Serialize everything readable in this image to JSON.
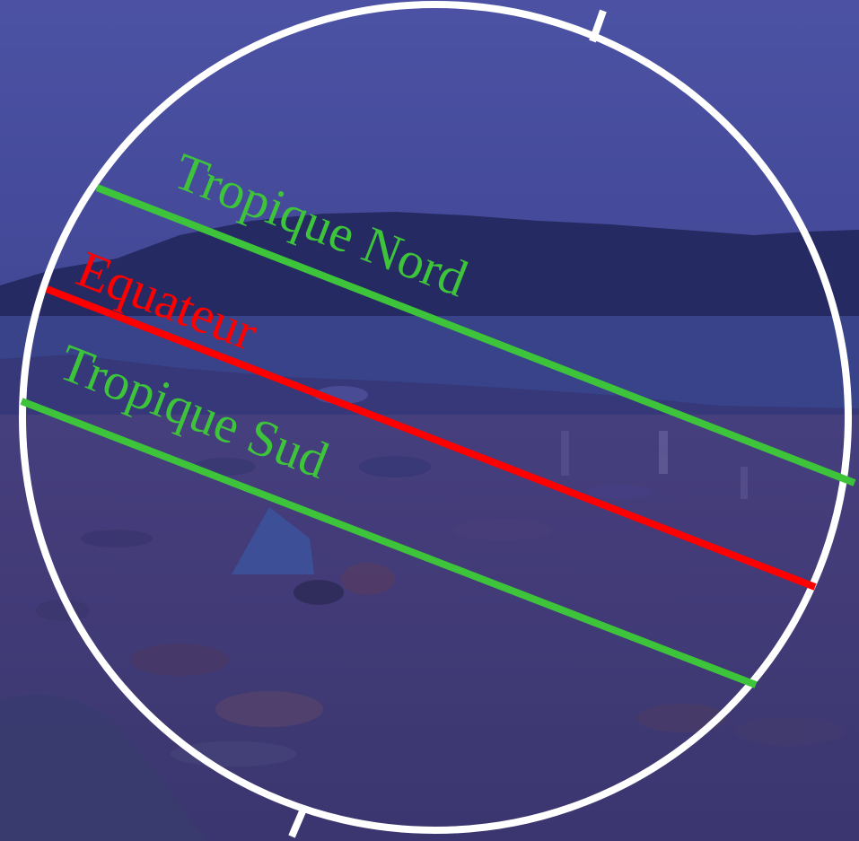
{
  "labels": {
    "tropic_north": "Tropique Nord",
    "equator": "Equateur",
    "tropic_south": "Tropique Sud"
  },
  "colors": {
    "sky": "#4f55a0",
    "forest": "#262a5c",
    "sea": "#3a4685",
    "sand": "#4a3f78",
    "circle": "#ffffff",
    "tropic_lines": "#3ec43a",
    "equator_line": "#ff0000"
  }
}
